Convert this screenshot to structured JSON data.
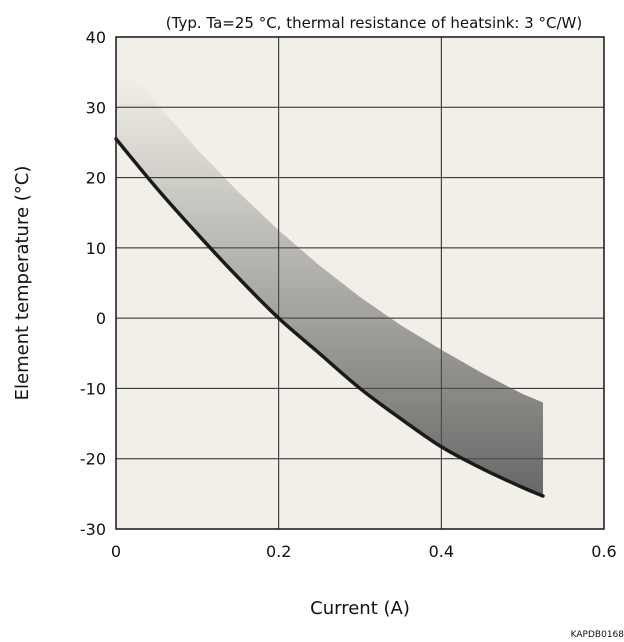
{
  "chart_data": {
    "type": "area",
    "title": "(Typ. Ta=25 °C, thermal resistance of heatsink: 3 °C/W)",
    "xlabel": "Current (A)",
    "ylabel": "Element temperature (°C)",
    "xlim": [
      0,
      0.6
    ],
    "ylim": [
      -30,
      40
    ],
    "xticks": [
      0,
      0.2,
      0.4,
      0.6
    ],
    "xtick_labels": [
      "0",
      "0.2",
      "0.4",
      "0.6"
    ],
    "yticks": [
      -30,
      -20,
      -10,
      0,
      10,
      20,
      30,
      40
    ],
    "ytick_labels": [
      "-30",
      "-20",
      "-10",
      "0",
      "10",
      "20",
      "30",
      "40"
    ],
    "grid": true,
    "series": [
      {
        "x": [
          0,
          0.05,
          0.1,
          0.15,
          0.2,
          0.25,
          0.3,
          0.35,
          0.4,
          0.45,
          0.5,
          0.525
        ],
        "values": [
          25.5,
          18.5,
          12.0,
          5.8,
          0.0,
          -5.0,
          -10.0,
          -14.3,
          -18.3,
          -21.4,
          -24.1,
          -25.3
        ]
      },
      {
        "x": [
          0,
          0.05,
          0.1,
          0.15,
          0.2,
          0.25,
          0.3,
          0.35,
          0.4,
          0.45,
          0.5,
          0.525
        ],
        "values": [
          37.5,
          30.5,
          24.0,
          18.0,
          12.5,
          7.5,
          3.0,
          -1.0,
          -4.5,
          -7.8,
          -10.8,
          -12.0
        ]
      }
    ],
    "figure_id": "KAPDB0168"
  },
  "colors": {
    "plot_background": "#f1efe7",
    "curve": "#1a1a1a",
    "band_dark": "#505050",
    "grid": "#222222"
  }
}
